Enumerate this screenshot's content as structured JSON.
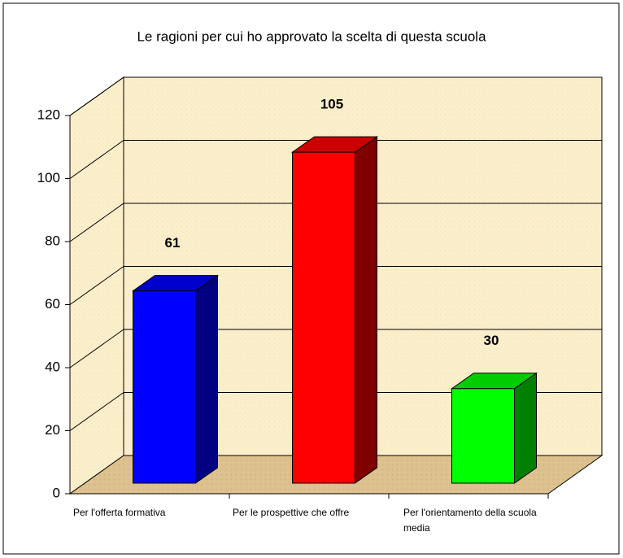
{
  "chart_data": {
    "type": "bar3d",
    "title": "Le ragioni per cui ho approvato la scelta di questa scuola",
    "categories": [
      "Per l'offerta formativa",
      "Per le prospettive che offre",
      "Per l'orientamento della scuola media"
    ],
    "values": [
      61,
      105,
      30
    ],
    "colors": [
      "#0000ff",
      "#ff0000",
      "#00ff00"
    ],
    "ylim": [
      0,
      120
    ],
    "yticks": [
      0,
      20,
      40,
      60,
      80,
      100,
      120
    ],
    "grid": true
  }
}
